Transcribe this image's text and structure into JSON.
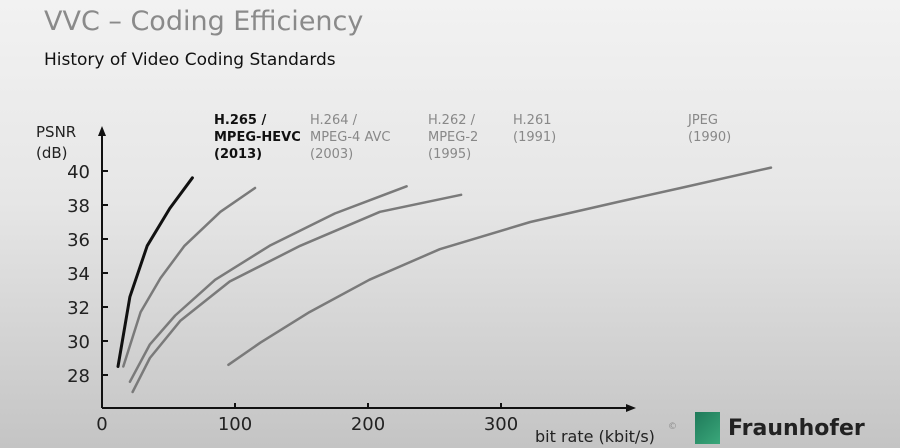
{
  "slide": {
    "title": "VVC – Coding Efficiency",
    "subtitle": "History of Video Coding Standards",
    "copyright": "©",
    "logo_text": "Fraunhofer"
  },
  "chart_data": {
    "type": "line",
    "ylabel_lines": [
      "PSNR",
      "(dB)"
    ],
    "xlabel": "bit rate (kbit/s)",
    "xlim": [
      0,
      400
    ],
    "ylim": [
      26,
      42
    ],
    "xticks": [
      0,
      100,
      200,
      300
    ],
    "yticks": [
      28,
      30,
      32,
      34,
      36,
      38,
      40
    ],
    "grid": false,
    "series": [
      {
        "name_lines": [
          "H.265 /",
          "MPEG-HEVC",
          "(2013)"
        ],
        "color": "#111111",
        "bold": true,
        "points": [
          [
            12,
            28.5
          ],
          [
            21,
            32.6
          ],
          [
            34,
            35.6
          ],
          [
            51,
            37.8
          ],
          [
            68,
            39.6
          ]
        ]
      },
      {
        "name_lines": [
          "H.264 /",
          "MPEG-4 AVC",
          "(2003)"
        ],
        "color": "#7a7a7a",
        "points": [
          [
            16,
            28.5
          ],
          [
            29,
            31.7
          ],
          [
            44,
            33.7
          ],
          [
            62,
            35.6
          ],
          [
            89,
            37.6
          ],
          [
            115,
            39.0
          ]
        ]
      },
      {
        "name_lines": [
          "H.262 /",
          "MPEG-2",
          "(1995)"
        ],
        "color": "#7a7a7a",
        "points": [
          [
            21,
            27.6
          ],
          [
            36,
            29.8
          ],
          [
            55,
            31.5
          ],
          [
            85,
            33.6
          ],
          [
            126,
            35.6
          ],
          [
            175,
            37.5
          ],
          [
            229,
            39.1
          ]
        ]
      },
      {
        "name_lines": [
          "H.261",
          "(1991)"
        ],
        "color": "#7a7a7a",
        "points": [
          [
            23,
            27.0
          ],
          [
            36,
            29.0
          ],
          [
            59,
            31.2
          ],
          [
            96,
            33.5
          ],
          [
            149,
            35.6
          ],
          [
            209,
            37.6
          ],
          [
            270,
            38.6
          ]
        ]
      },
      {
        "name_lines": [
          "JPEG",
          "(1990)"
        ],
        "color": "#7a7a7a",
        "points": [
          [
            95,
            28.6
          ],
          [
            119,
            29.9
          ],
          [
            156,
            31.7
          ],
          [
            201,
            33.6
          ],
          [
            254,
            35.4
          ],
          [
            322,
            37.0
          ],
          [
            389,
            38.2
          ],
          [
            435,
            39.0
          ],
          [
            503,
            40.2
          ]
        ]
      }
    ]
  }
}
